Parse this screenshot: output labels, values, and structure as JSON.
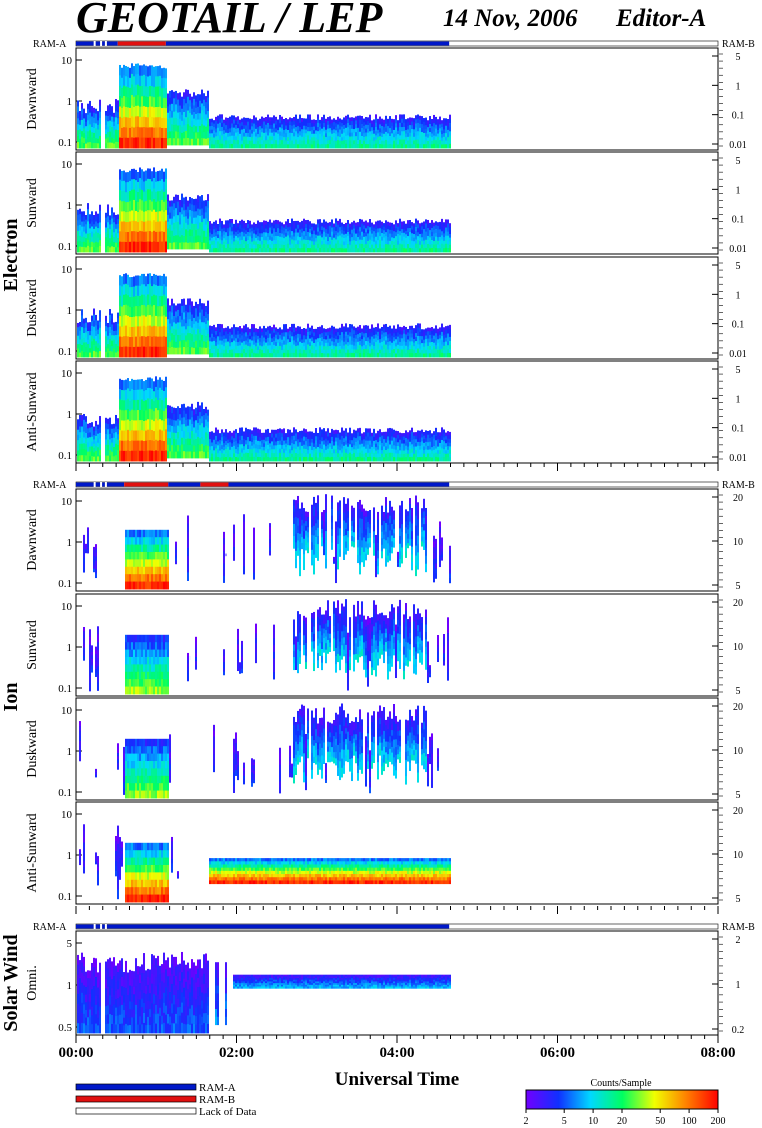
{
  "header": {
    "title": "GEOTAIL / LEP",
    "date": "14 Nov, 2006",
    "editor": "Editor-A"
  },
  "mode_labels": {
    "left": "RAM-A",
    "right": "RAM-B"
  },
  "groups": [
    {
      "label": "Electron",
      "panels": [
        "Dawnward",
        "Sunward",
        "Duskward",
        "Anti-Sunward"
      ]
    },
    {
      "label": "Ion",
      "panels": [
        "Dawnward",
        "Sunward",
        "Duskward",
        "Anti-Sunward"
      ]
    },
    {
      "label": "Solar Wind",
      "panels": [
        "Omni."
      ]
    }
  ],
  "x_axis": {
    "label": "Universal Time",
    "ticks": [
      "00:00",
      "02:00",
      "04:00",
      "06:00",
      "08:00"
    ],
    "range_hours": [
      0,
      8
    ],
    "data_end_hours": 4.65
  },
  "legend": {
    "items": [
      {
        "label": "RAM-A",
        "color": "#0018c8"
      },
      {
        "label": "RAM-B",
        "color": "#e01010"
      },
      {
        "label": "Lack of Data",
        "color": "#ffffff"
      }
    ]
  },
  "colorbar": {
    "title": "Counts/Sample",
    "ticks": [
      "2",
      "5",
      "10",
      "20",
      "50",
      "100",
      "200"
    ],
    "range": [
      2,
      200
    ],
    "scale": "log",
    "colors": [
      "#7000ff",
      "#1030ff",
      "#00d8ff",
      "#00ff60",
      "#f0ff00",
      "#ff8000",
      "#ff0000"
    ]
  },
  "chart_data": [
    {
      "type": "heatmap",
      "group": "Electron",
      "scale": "log",
      "panels": [
        {
          "ylabel": "Dawnward",
          "left_ticks": [
            "10",
            "1",
            "0.1"
          ],
          "right_ticks": [
            "5",
            "1",
            "0.1",
            "0.01"
          ]
        },
        {
          "ylabel": "Sunward",
          "left_ticks": [
            "10",
            "1",
            "0.1"
          ],
          "right_ticks": [
            "5",
            "1",
            "0.1",
            "0.01"
          ]
        },
        {
          "ylabel": "Duskward",
          "left_ticks": [
            "10",
            "1",
            "0.1"
          ],
          "right_ticks": [
            "5",
            "1",
            "0.1",
            "0.01"
          ]
        },
        {
          "ylabel": "Anti-Sunward",
          "left_ticks": [
            "10",
            "1",
            "0.1"
          ],
          "right_ticks": [
            "5",
            "1",
            "0.1",
            "0.01"
          ]
        }
      ],
      "mode_bar": [
        {
          "mode": "RAM-A",
          "start": 0.0,
          "end": 0.52
        },
        {
          "mode": "RAM-B",
          "start": 0.52,
          "end": 1.12
        },
        {
          "mode": "RAM-A",
          "start": 1.12,
          "end": 4.65
        },
        {
          "mode": "Lack of Data",
          "start": 4.65,
          "end": 8.0
        }
      ],
      "intervals": [
        {
          "start": 0.0,
          "end": 0.52,
          "level": "low"
        },
        {
          "start": 0.52,
          "end": 1.12,
          "level": "high"
        },
        {
          "start": 1.12,
          "end": 1.65,
          "level": "medium"
        },
        {
          "start": 1.65,
          "end": 4.65,
          "level": "low"
        }
      ]
    },
    {
      "type": "heatmap",
      "group": "Ion",
      "scale": "log",
      "panels": [
        {
          "ylabel": "Dawnward",
          "left_ticks": [
            "10",
            "1",
            "0.1"
          ],
          "right_ticks": [
            "20",
            "10",
            "5"
          ]
        },
        {
          "ylabel": "Sunward",
          "left_ticks": [
            "10",
            "1",
            "0.1"
          ],
          "right_ticks": [
            "20",
            "10",
            "5"
          ]
        },
        {
          "ylabel": "Duskward",
          "left_ticks": [
            "10",
            "1",
            "0.1"
          ],
          "right_ticks": [
            "20",
            "10",
            "5"
          ]
        },
        {
          "ylabel": "Anti-Sunward",
          "left_ticks": [
            "10",
            "1",
            "0.1"
          ],
          "right_ticks": [
            "20",
            "10",
            "5"
          ]
        }
      ],
      "mode_bar": [
        {
          "mode": "RAM-A",
          "start": 0.0,
          "end": 0.6
        },
        {
          "mode": "RAM-B",
          "start": 0.6,
          "end": 1.15
        },
        {
          "mode": "RAM-A",
          "start": 1.15,
          "end": 1.55
        },
        {
          "mode": "RAM-B",
          "start": 1.55,
          "end": 1.9
        },
        {
          "mode": "RAM-A",
          "start": 1.9,
          "end": 4.65
        },
        {
          "mode": "Lack of Data",
          "start": 4.65,
          "end": 8.0
        }
      ]
    },
    {
      "type": "heatmap",
      "group": "Solar Wind",
      "scale": "log",
      "panels": [
        {
          "ylabel": "Omni.",
          "left_ticks": [
            "5",
            "1",
            "0.5"
          ],
          "right_ticks": [
            "2",
            "1",
            "0.2"
          ]
        }
      ],
      "mode_bar": [
        {
          "mode": "RAM-A",
          "start": 0.0,
          "end": 4.65
        },
        {
          "mode": "Lack of Data",
          "start": 4.65,
          "end": 8.0
        }
      ]
    }
  ]
}
